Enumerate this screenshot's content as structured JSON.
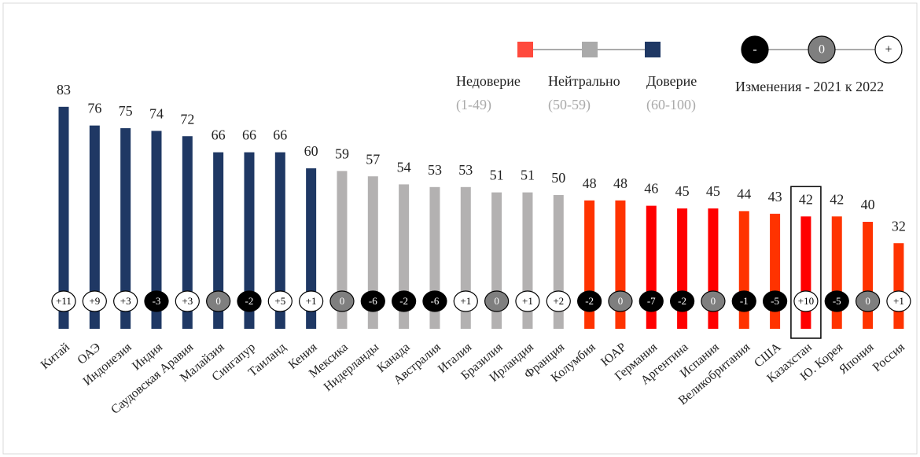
{
  "chart_data": {
    "type": "bar",
    "categories": [
      "Китай",
      "ОАЭ",
      "Индонезия",
      "Индия",
      "Саудовская Аравия",
      "Малайзия",
      "Сингапур",
      "Таиланд",
      "Кения",
      "Мексика",
      "Нидерланды",
      "Канада",
      "Австралия",
      "Италия",
      "Бразилия",
      "Ирландия",
      "Франция",
      "Колумбия",
      "ЮАР",
      "Германия",
      "Аргентина",
      "Испания",
      "Великобритания",
      "США",
      "Казахстан",
      "Ю. Корея",
      "Япония",
      "Россия"
    ],
    "values": [
      83,
      76,
      75,
      74,
      72,
      66,
      66,
      66,
      60,
      59,
      57,
      54,
      53,
      53,
      51,
      51,
      50,
      48,
      48,
      46,
      45,
      45,
      44,
      43,
      42,
      42,
      40,
      32
    ],
    "colors": [
      "#1f3864",
      "#1f3864",
      "#1f3864",
      "#1f3864",
      "#1f3864",
      "#1f3864",
      "#1f3864",
      "#1f3864",
      "#1f3864",
      "#b3b1b1",
      "#b3b1b1",
      "#b3b1b1",
      "#b3b1b1",
      "#b3b1b1",
      "#b3b1b1",
      "#b3b1b1",
      "#b3b1b1",
      "#ff3300",
      "#ff3300",
      "#ff0000",
      "#ff0000",
      "#ff0000",
      "#ff3300",
      "#ff3300",
      "#ff0000",
      "#ff3300",
      "#ff3300",
      "#ff3300"
    ],
    "changes": {
      "values": [
        11,
        9,
        3,
        -3,
        3,
        0,
        -2,
        5,
        1,
        0,
        -6,
        -2,
        -6,
        1,
        0,
        1,
        2,
        -2,
        0,
        -7,
        -2,
        0,
        -1,
        -5,
        10,
        -5,
        0,
        1
      ],
      "value_labels": [
        "+11",
        "+9",
        "+3",
        "-3",
        "+3",
        "0",
        "-2",
        "+5",
        "+1",
        "0",
        "-6",
        "-2",
        "-6",
        "+1",
        "0",
        "+1",
        "+2",
        "-2",
        "0",
        "-7",
        "-2",
        "0",
        "-1",
        "-5",
        "+10",
        "-5",
        "0",
        "+1"
      ]
    },
    "legend": [
      {
        "name": "Недоверие",
        "range": "(1-49)",
        "color": "#ff4a3d"
      },
      {
        "name": "Нейтрально",
        "range": "(50-59)",
        "color": "#aaaaaa"
      },
      {
        "name": "Доверие",
        "range": "(60-100)",
        "color": "#1f3864"
      }
    ],
    "change_legend": {
      "title": "Изменения - 2021 к 2022",
      "symbols": [
        "-",
        "0",
        "+"
      ]
    },
    "highlight": "Казахстан"
  }
}
